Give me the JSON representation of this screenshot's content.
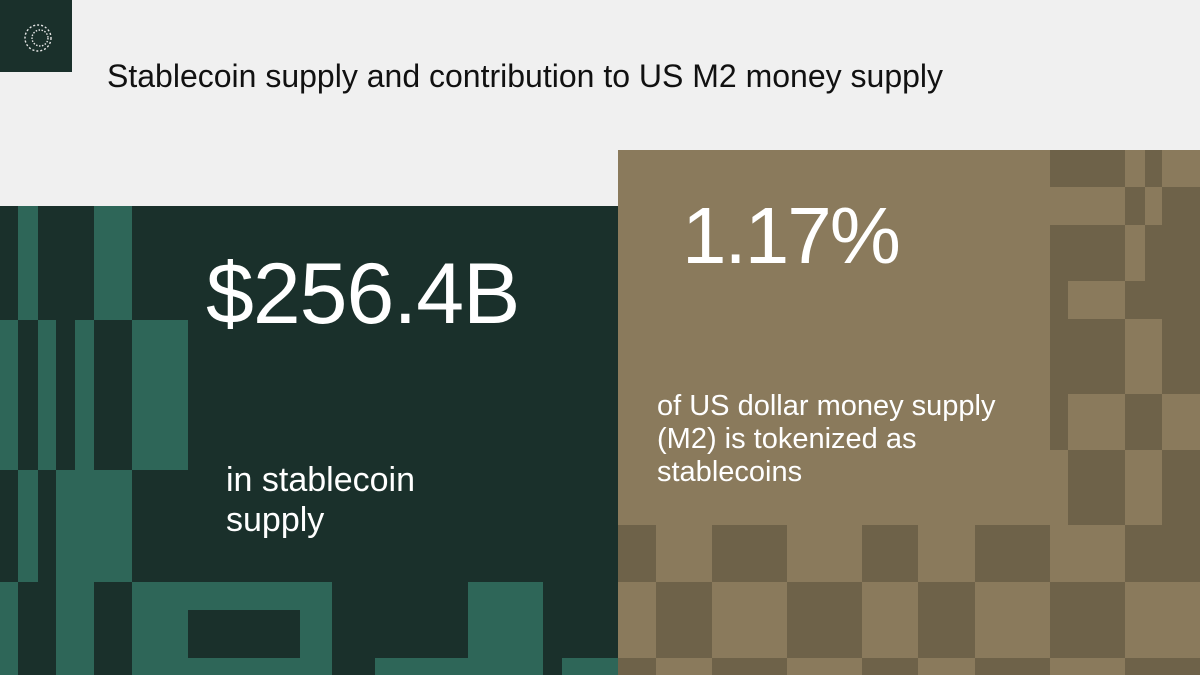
{
  "header": {
    "title": "Stablecoin supply and contribution to US M2 money supply"
  },
  "stats": [
    {
      "value": "$256.4B",
      "caption": "in stablecoin supply"
    },
    {
      "value": "1.17%",
      "caption": "of US dollar money supply (M2) is tokenized as stablecoins"
    }
  ]
}
